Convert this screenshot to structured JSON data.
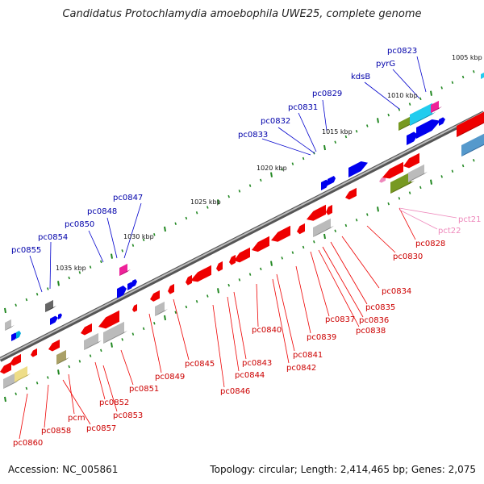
{
  "title": "Candidatus Protochlamydia amoebophila UWE25, complete genome",
  "footer": {
    "accession": "Accession: NC_005861",
    "topology": "Topology: circular; Length: 2,414,465 bp; Genes: 2,075"
  },
  "colors": {
    "forward": "#0000ee",
    "reverse": "#ee0000",
    "label_fwd": "#0000aa",
    "label_rev": "#cc0000",
    "label_pink": "#ee88bb",
    "tick": "#228822",
    "backbone": "#777777"
  },
  "kbp_labels": [
    "1005 kbp",
    "1010 kbp",
    "1015 kbp",
    "1020 kbp",
    "1025 kbp",
    "1030 kbp",
    "1035 kbp"
  ],
  "forward_labels": [
    "pc0823",
    "pyrG",
    "kdsB",
    "pc0829",
    "pc0831",
    "pc0832",
    "pc0833",
    "pc0847",
    "pc0848",
    "pc0850",
    "pc0854",
    "pc0855"
  ],
  "reverse_labels": [
    "pct21",
    "pct22",
    "pc0828",
    "pc0830",
    "pc0834",
    "pc0835",
    "pc0836",
    "pc0837",
    "pc0838",
    "pc0839",
    "pc0840",
    "pc0841",
    "pc0842",
    "pc0843",
    "pc0844",
    "pc0845",
    "pc0846",
    "pc0849",
    "pc0851",
    "pc0852",
    "pc0853",
    "pcm",
    "pc0857",
    "pc0858",
    "pc0860"
  ]
}
